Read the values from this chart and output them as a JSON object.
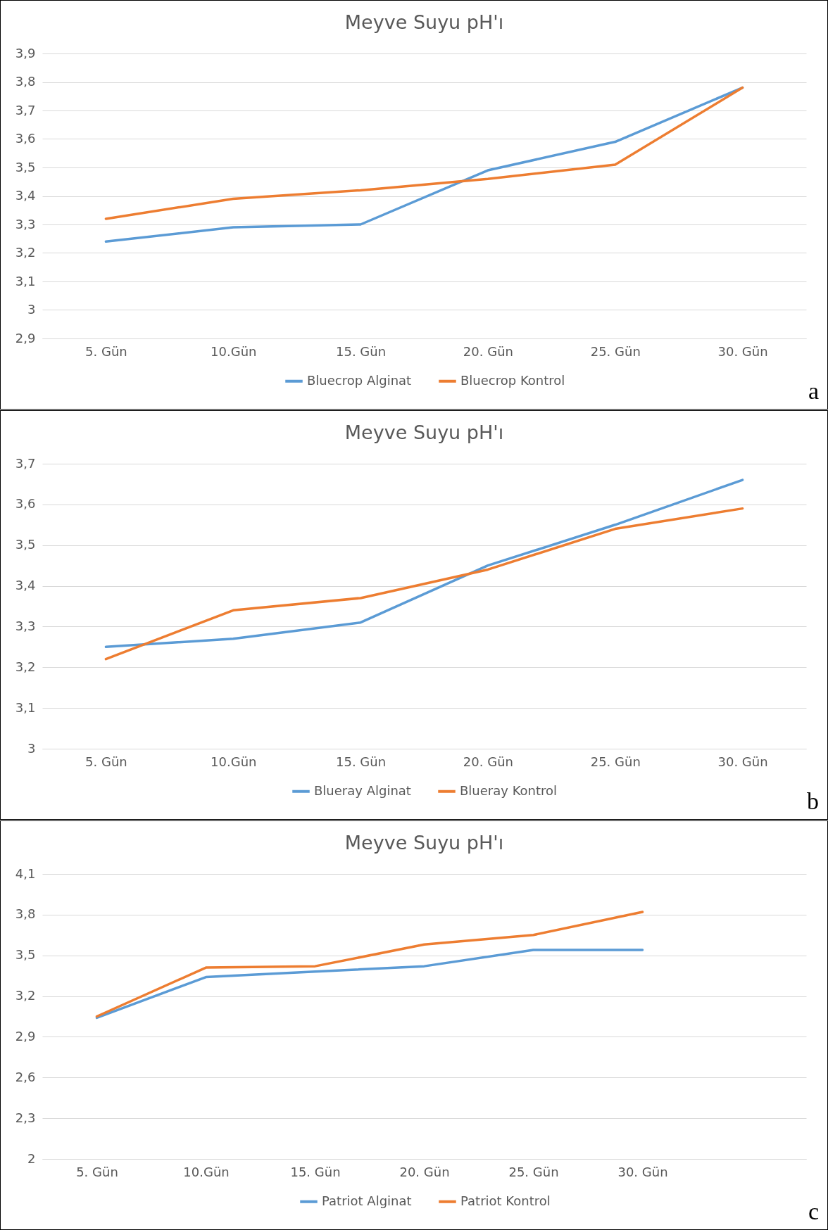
{
  "chart_data": [
    {
      "type": "line",
      "title": "Meyve Suyu pH'ı",
      "categories": [
        "5. Gün",
        "10.Gün",
        "15. Gün",
        "20. Gün",
        "25. Gün",
        "30. Gün"
      ],
      "series": [
        {
          "name": "Bluecrop Alginat",
          "color": "#5b9bd5",
          "values": [
            3.24,
            3.29,
            3.3,
            3.49,
            3.59,
            3.78
          ]
        },
        {
          "name": "Bluecrop Kontrol",
          "color": "#ed7d31",
          "values": [
            3.32,
            3.39,
            3.42,
            3.46,
            3.51,
            3.78
          ]
        }
      ],
      "ylim": [
        2.9,
        3.9
      ],
      "yticks": [
        {
          "value": 2.9,
          "label": "2,9"
        },
        {
          "value": 3,
          "label": "3"
        },
        {
          "value": 3.1,
          "label": "3,1"
        },
        {
          "value": 3.2,
          "label": "3,2"
        },
        {
          "value": 3.3,
          "label": "3,3"
        },
        {
          "value": 3.4,
          "label": "3,4"
        },
        {
          "value": 3.5,
          "label": "3,5"
        },
        {
          "value": 3.6,
          "label": "3,6"
        },
        {
          "value": 3.7,
          "label": "3,7"
        },
        {
          "value": 3.8,
          "label": "3,8"
        },
        {
          "value": 3.9,
          "label": "3,9"
        }
      ],
      "grid": "y",
      "legend": "bottom",
      "marker": "none",
      "line_style": "solid",
      "annotations": [
        "a"
      ]
    },
    {
      "type": "line",
      "title": "Meyve Suyu pH'ı",
      "categories": [
        "5. Gün",
        "10.Gün",
        "15. Gün",
        "20. Gün",
        "25. Gün",
        "30. Gün"
      ],
      "series": [
        {
          "name": "Blueray Alginat",
          "color": "#5b9bd5",
          "values": [
            3.25,
            3.27,
            3.31,
            3.45,
            3.55,
            3.66
          ]
        },
        {
          "name": "Blueray Kontrol",
          "color": "#ed7d31",
          "values": [
            3.22,
            3.34,
            3.37,
            3.44,
            3.54,
            3.59
          ]
        }
      ],
      "ylim": [
        3,
        3.7
      ],
      "yticks": [
        {
          "value": 3,
          "label": "3"
        },
        {
          "value": 3.1,
          "label": "3,1"
        },
        {
          "value": 3.2,
          "label": "3,2"
        },
        {
          "value": 3.3,
          "label": "3,3"
        },
        {
          "value": 3.4,
          "label": "3,4"
        },
        {
          "value": 3.5,
          "label": "3,5"
        },
        {
          "value": 3.6,
          "label": "3,6"
        },
        {
          "value": 3.7,
          "label": "3,7"
        }
      ],
      "grid": "y",
      "legend": "bottom",
      "marker": "none",
      "line_style": "solid",
      "annotations": [
        "b"
      ]
    },
    {
      "type": "line",
      "title": "Meyve Suyu pH'ı",
      "categories": [
        "5. Gün",
        "10.Gün",
        "15. Gün",
        "20. Gün",
        "25. Gün",
        "30. Gün",
        null
      ],
      "series": [
        {
          "name": "Patriot Alginat",
          "color": "#5b9bd5",
          "values": [
            3.04,
            3.34,
            3.38,
            3.42,
            3.54,
            3.54,
            null
          ]
        },
        {
          "name": "Patriot Kontrol",
          "color": "#ed7d31",
          "values": [
            3.05,
            3.41,
            3.42,
            3.58,
            3.65,
            3.82,
            null
          ]
        }
      ],
      "ylim": [
        2,
        4.1
      ],
      "yticks": [
        {
          "value": 2,
          "label": "2"
        },
        {
          "value": 2.3,
          "label": "2,3"
        },
        {
          "value": 2.6,
          "label": "2,6"
        },
        {
          "value": 2.9,
          "label": "2,9"
        },
        {
          "value": 3.2,
          "label": "3,2"
        },
        {
          "value": 3.5,
          "label": "3,5"
        },
        {
          "value": 3.8,
          "label": "3,8"
        },
        {
          "value": 4.1,
          "label": "4,1"
        }
      ],
      "grid": "y",
      "legend": "bottom",
      "marker": "none",
      "line_style": "solid",
      "annotations": [
        "c"
      ]
    }
  ]
}
